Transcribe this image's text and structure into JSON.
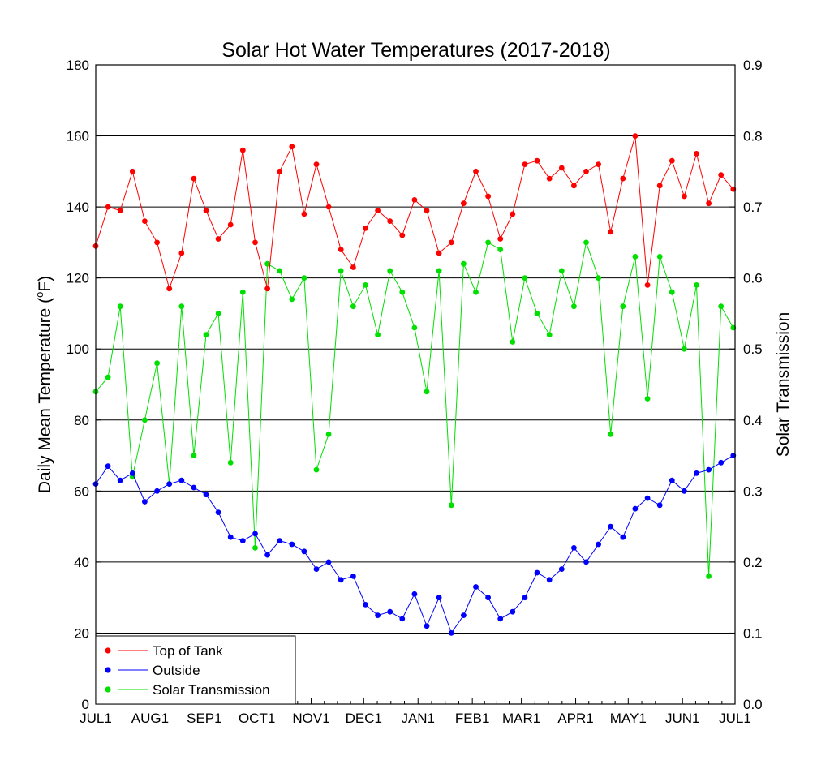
{
  "chart_data": {
    "type": "line",
    "title": "Solar Hot Water Temperatures (2017-2018)",
    "ylabel_left": "Daily Mean Temperature (°F)",
    "ylabel_left_parts": [
      "Daily Mean Temperature (",
      "o",
      "F)"
    ],
    "ylabel_right": "Solar Transmission",
    "x_tick_labels": [
      "JUL1",
      "AUG1",
      "SEP1",
      "OCT1",
      "NOV1",
      "DEC1",
      "JAN1",
      "FEB1",
      "MAR1",
      "APR1",
      "MAY1",
      "JUN1",
      "JUL1"
    ],
    "x_tick_days": [
      0,
      31,
      62,
      92,
      123,
      153,
      184,
      215,
      243,
      274,
      304,
      335,
      365
    ],
    "xlim": [
      0,
      365
    ],
    "ylim_left": [
      0,
      180
    ],
    "ylim_right": [
      0,
      0.9
    ],
    "y_ticks_left": [
      0,
      20,
      40,
      60,
      80,
      100,
      120,
      140,
      160,
      180
    ],
    "y_ticks_right": [
      "0.0",
      "0.1",
      "0.2",
      "0.3",
      "0.4",
      "0.5",
      "0.6",
      "0.7",
      "0.8",
      "0.9"
    ],
    "gridlines": [
      20,
      40,
      60,
      80,
      100,
      120,
      140,
      160
    ],
    "legend": {
      "position": "bottom-left",
      "entries": [
        {
          "label": "Top of Tank",
          "color": "#ff0000"
        },
        {
          "label": "Outside",
          "color": "#0000ff"
        },
        {
          "label": "Solar Transmission",
          "color": "#00e000"
        }
      ]
    },
    "series": [
      {
        "name": "Top of Tank",
        "axis": "left",
        "color": "#ff0000",
        "x": [
          0,
          7,
          14,
          21,
          28,
          35,
          42,
          49,
          56,
          63,
          70,
          77,
          84,
          91,
          98,
          105,
          112,
          119,
          126,
          133,
          140,
          147,
          154,
          161,
          168,
          175,
          182,
          189,
          196,
          203,
          210,
          217,
          224,
          231,
          238,
          245,
          252,
          259,
          266,
          273,
          280,
          287,
          294,
          301,
          308,
          315,
          322,
          329,
          336,
          343,
          350,
          357,
          364
        ],
        "values": [
          129,
          140,
          139,
          150,
          136,
          130,
          117,
          127,
          148,
          139,
          131,
          135,
          156,
          130,
          117,
          150,
          157,
          138,
          152,
          140,
          128,
          123,
          134,
          139,
          136,
          132,
          142,
          139,
          127,
          130,
          141,
          150,
          143,
          131,
          138,
          152,
          153,
          148,
          151,
          146,
          150,
          152,
          133,
          148,
          160,
          118,
          146,
          153,
          143,
          155,
          141,
          149,
          145
        ]
      },
      {
        "name": "Outside",
        "axis": "left",
        "color": "#0000ff",
        "x": [
          0,
          7,
          14,
          21,
          28,
          35,
          42,
          49,
          56,
          63,
          70,
          77,
          84,
          91,
          98,
          105,
          112,
          119,
          126,
          133,
          140,
          147,
          154,
          161,
          168,
          175,
          182,
          189,
          196,
          203,
          210,
          217,
          224,
          231,
          238,
          245,
          252,
          259,
          266,
          273,
          280,
          287,
          294,
          301,
          308,
          315,
          322,
          329,
          336,
          343,
          350,
          357,
          364
        ],
        "values": [
          62,
          67,
          63,
          65,
          57,
          60,
          62,
          63,
          61,
          59,
          54,
          47,
          46,
          48,
          42,
          46,
          45,
          43,
          38,
          40,
          35,
          36,
          28,
          25,
          26,
          24,
          31,
          22,
          30,
          20,
          25,
          33,
          30,
          24,
          26,
          30,
          37,
          35,
          38,
          44,
          40,
          45,
          50,
          47,
          55,
          58,
          56,
          63,
          60,
          65,
          66,
          68,
          70
        ]
      },
      {
        "name": "Solar Transmission",
        "axis": "right",
        "color": "#00e000",
        "x": [
          0,
          7,
          14,
          21,
          28,
          35,
          42,
          49,
          56,
          63,
          70,
          77,
          84,
          91,
          98,
          105,
          112,
          119,
          126,
          133,
          140,
          147,
          154,
          161,
          168,
          175,
          182,
          189,
          196,
          203,
          210,
          217,
          224,
          231,
          238,
          245,
          252,
          259,
          266,
          273,
          280,
          287,
          294,
          301,
          308,
          315,
          322,
          329,
          336,
          343,
          350,
          357,
          364
        ],
        "values": [
          0.44,
          0.46,
          0.56,
          0.32,
          0.4,
          0.48,
          0.31,
          0.56,
          0.35,
          0.52,
          0.55,
          0.34,
          0.58,
          0.22,
          0.62,
          0.61,
          0.57,
          0.6,
          0.33,
          0.38,
          0.61,
          0.56,
          0.59,
          0.52,
          0.61,
          0.58,
          0.53,
          0.44,
          0.61,
          0.28,
          0.62,
          0.58,
          0.65,
          0.64,
          0.51,
          0.6,
          0.55,
          0.52,
          0.61,
          0.56,
          0.65,
          0.6,
          0.38,
          0.56,
          0.63,
          0.43,
          0.63,
          0.58,
          0.5,
          0.59,
          0.18,
          0.56,
          0.53
        ]
      }
    ]
  }
}
